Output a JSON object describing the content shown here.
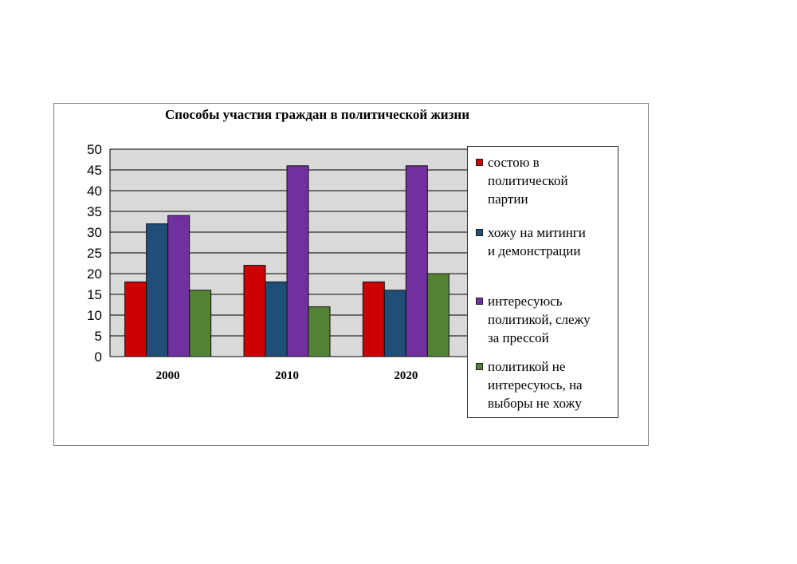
{
  "chart_data": {
    "type": "bar",
    "title": "Способы участия граждан в политической жизни",
    "categories": [
      "2000",
      "2010",
      "2020"
    ],
    "series": [
      {
        "name": "состою в политической партии",
        "color": "#cc0000",
        "values": [
          18,
          22,
          18
        ]
      },
      {
        "name": "хожу на митинги и демонстрации",
        "color": "#1f4e79",
        "values": [
          32,
          18,
          16
        ]
      },
      {
        "name": "интересуюсь политикой, слежу за прессой",
        "color": "#7030a0",
        "values": [
          34,
          46,
          46
        ]
      },
      {
        "name": "политикой не интересуюсь, на выборы не хожу",
        "color": "#548235",
        "values": [
          16,
          12,
          20
        ]
      }
    ],
    "y_ticks": [
      "0",
      "5",
      "10",
      "15",
      "20",
      "25",
      "30",
      "35",
      "40",
      "45",
      "50"
    ],
    "ylim": [
      0,
      50
    ],
    "grid": true,
    "legend_position": "right"
  },
  "legend": {
    "items": [
      {
        "label": "состою в\nполитической\nпартии",
        "color": "#cc0000"
      },
      {
        "label": "хожу на митинги\nи демонстрации",
        "color": "#1f4e79"
      },
      {
        "label": "интересуюсь\nполитикой, слежу\nза прессой",
        "color": "#7030a0"
      },
      {
        "label": "политикой не\nинтересуюсь, на\nвыборы не хожу",
        "color": "#548235"
      }
    ]
  }
}
